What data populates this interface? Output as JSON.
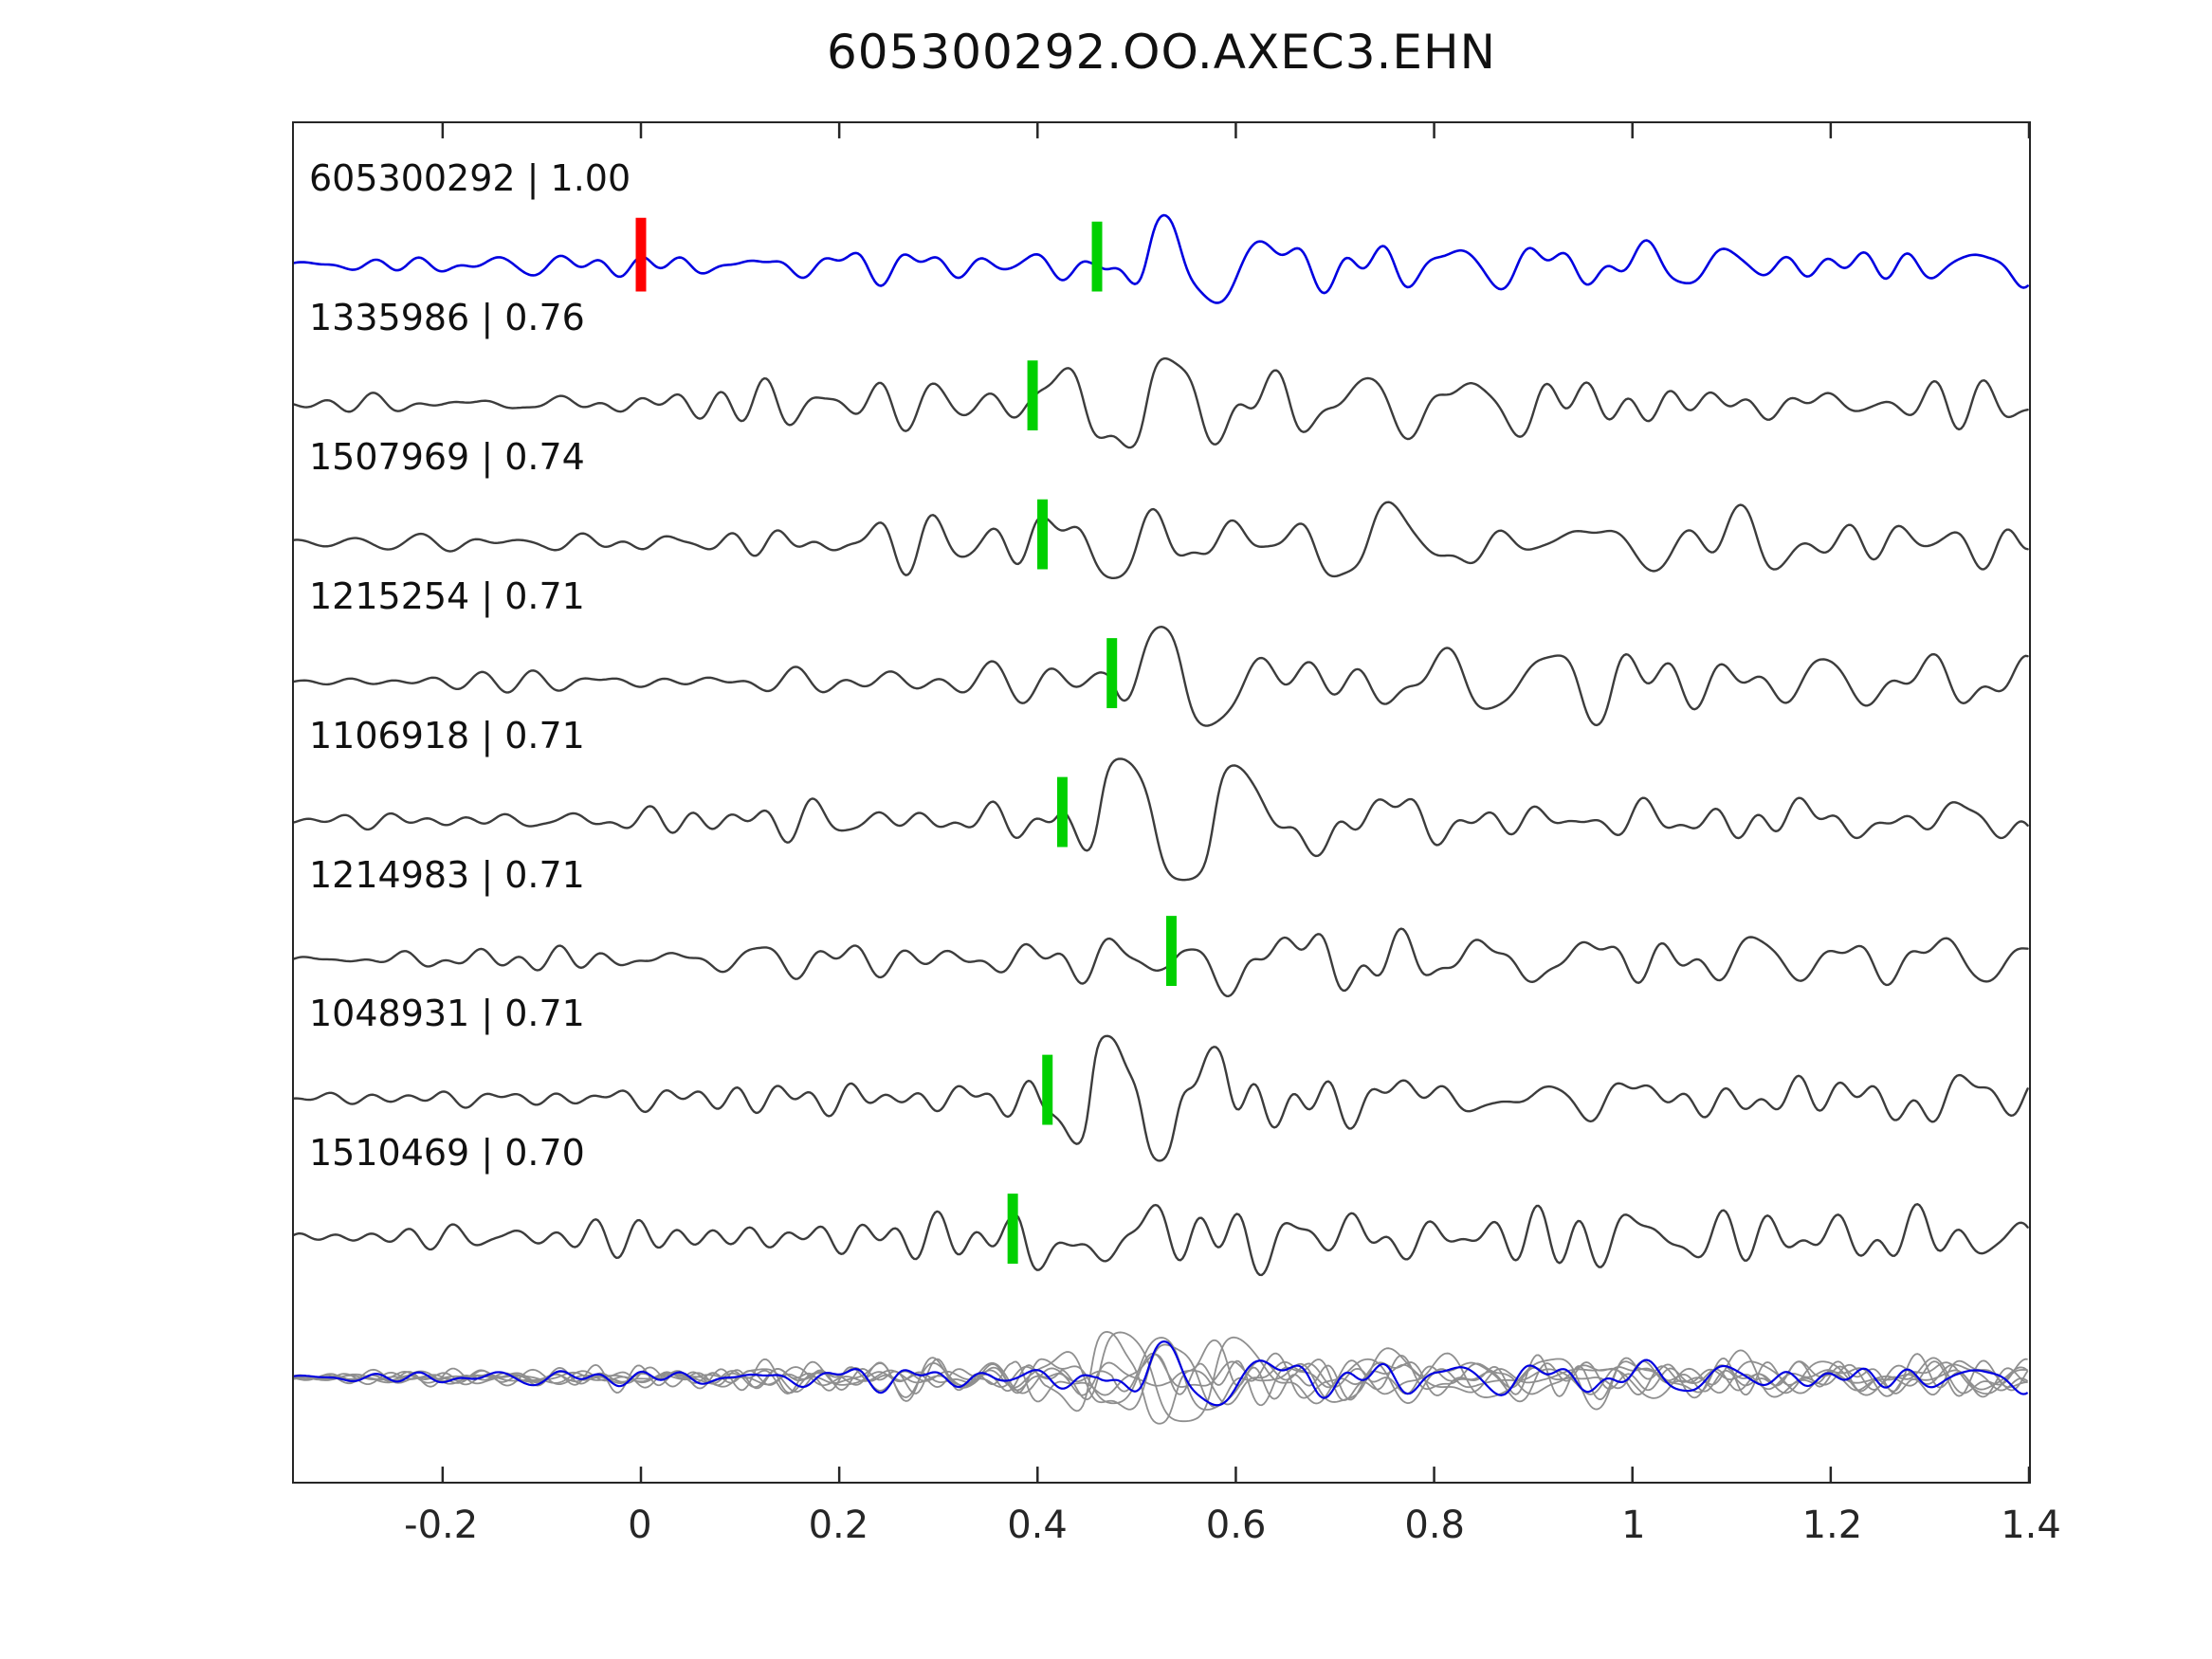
{
  "title": "605300292.OO.AXEC3.EHN",
  "chart_data": {
    "type": "line",
    "subtype": "seismic-waveform-stack",
    "title": "605300292.OO.AXEC3.EHN",
    "xlim": [
      -0.35,
      1.4
    ],
    "xticks": [
      -0.2,
      0,
      0.2,
      0.4,
      0.6,
      0.8,
      1,
      1.2,
      1.4
    ],
    "xtick_labels": [
      "-0.2",
      "0",
      "0.2",
      "0.4",
      "0.6",
      "0.8",
      "1",
      "1.2",
      "1.4"
    ],
    "grid": false,
    "legend": false,
    "template_color": "#0000e0",
    "trace_color": "#3c3c3c",
    "overlay_gray": "#8f8f8f",
    "pick_marker_color": "#00d000",
    "reference_marker": {
      "trace": "605300292",
      "time": 0,
      "color": "#ff0000"
    },
    "traces": [
      {
        "id": "605300292",
        "correlation": 1.0,
        "label": "605300292 | 1.00",
        "pick_time": 0.46,
        "is_template": true
      },
      {
        "id": "1335986",
        "correlation": 0.76,
        "label": "1335986 | 0.76",
        "pick_time": 0.395
      },
      {
        "id": "1507969",
        "correlation": 0.74,
        "label": "1507969 | 0.74",
        "pick_time": 0.405
      },
      {
        "id": "1215254",
        "correlation": 0.71,
        "label": "1215254 | 0.71",
        "pick_time": 0.475
      },
      {
        "id": "1106918",
        "correlation": 0.71,
        "label": "1106918 | 0.71",
        "pick_time": 0.425
      },
      {
        "id": "1214983",
        "correlation": 0.71,
        "label": "1214983 | 0.71",
        "pick_time": 0.535
      },
      {
        "id": "1048931",
        "correlation": 0.71,
        "label": "1048931 | 0.71",
        "pick_time": 0.41
      },
      {
        "id": "1510469",
        "correlation": 0.7,
        "label": "1510469 | 0.70",
        "pick_time": 0.375
      }
    ],
    "overlay": {
      "description": "all traces superimposed at bottom, template highlighted",
      "includes_all_traces": true
    }
  }
}
